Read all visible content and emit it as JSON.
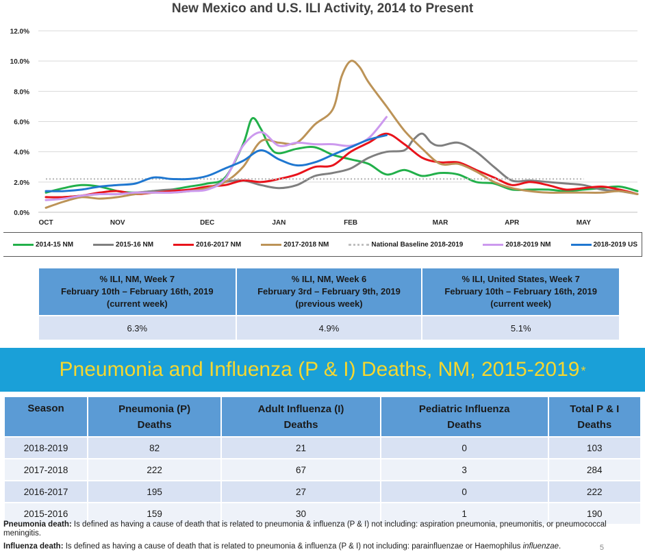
{
  "chart_data": {
    "type": "line",
    "title": "New Mexico and U.S. ILI Activity, 2014 to Present",
    "xlabel": "",
    "ylabel": "",
    "x_range": [
      0,
      33
    ],
    "ylim": [
      0,
      12
    ],
    "y_ticks": [
      "0.0%",
      "2.0%",
      "4.0%",
      "6.0%",
      "8.0%",
      "10.0%",
      "12.0%"
    ],
    "month_ticks": [
      {
        "label": "OCT",
        "x": 0
      },
      {
        "label": "NOV",
        "x": 4
      },
      {
        "label": "DEC",
        "x": 9
      },
      {
        "label": "JAN",
        "x": 13
      },
      {
        "label": "FEB",
        "x": 17
      },
      {
        "label": "MAR",
        "x": 22
      },
      {
        "label": "APR",
        "x": 26
      },
      {
        "label": "MAY",
        "x": 30
      }
    ],
    "grid": true,
    "legend_position": "bottom",
    "series": [
      {
        "name": "2014-15 NM",
        "color": "#22b04a",
        "dashed": false,
        "x": [
          0,
          1,
          2,
          3,
          4,
          5,
          6,
          7,
          8,
          9,
          10,
          11,
          11.5,
          12,
          12.5,
          13,
          14,
          15,
          16,
          17,
          18,
          19,
          20,
          21,
          22,
          23,
          24,
          25,
          26,
          27,
          28,
          29,
          30,
          31,
          32,
          33
        ],
        "y": [
          1.3,
          1.6,
          1.8,
          1.7,
          1.4,
          1.3,
          1.4,
          1.5,
          1.7,
          1.9,
          2.3,
          4.5,
          6.2,
          5.5,
          4.3,
          3.9,
          4.2,
          4.3,
          3.8,
          3.5,
          3.2,
          2.5,
          2.8,
          2.4,
          2.6,
          2.5,
          2.0,
          1.9,
          1.5,
          1.5,
          1.5,
          1.4,
          1.5,
          1.6,
          1.7,
          1.4
        ]
      },
      {
        "name": "2015-16 NM",
        "color": "#7f7f7f",
        "dashed": false,
        "x": [
          0,
          1,
          2,
          3,
          4,
          5,
          6,
          7,
          8,
          9,
          10,
          11,
          12,
          13,
          14,
          15,
          16,
          17,
          18,
          19,
          20,
          20.5,
          21,
          21.5,
          22,
          23,
          24,
          25,
          26,
          27,
          28,
          29,
          30,
          31,
          32,
          33
        ],
        "y": [
          1.0,
          1.0,
          1.1,
          1.2,
          1.2,
          1.3,
          1.4,
          1.5,
          1.4,
          1.6,
          2.0,
          2.1,
          1.8,
          1.6,
          1.8,
          2.4,
          2.6,
          2.9,
          3.6,
          4.0,
          4.1,
          4.8,
          5.2,
          4.6,
          4.4,
          4.6,
          4.0,
          3.0,
          2.1,
          2.1,
          2.0,
          1.9,
          1.8,
          1.5,
          1.4,
          1.2
        ]
      },
      {
        "name": "2016-2017 NM",
        "color": "#e8131b",
        "dashed": false,
        "x": [
          0,
          1,
          2,
          3,
          4,
          5,
          6,
          7,
          8,
          9,
          10,
          11,
          12,
          13,
          14,
          15,
          16,
          17,
          18,
          19,
          20,
          21,
          22,
          23,
          24,
          25,
          26,
          27,
          28,
          29,
          30,
          31,
          32,
          33
        ],
        "y": [
          1.0,
          1.0,
          1.1,
          1.3,
          1.4,
          1.2,
          1.3,
          1.4,
          1.5,
          1.7,
          1.8,
          2.1,
          2.0,
          2.2,
          2.5,
          3.0,
          3.1,
          4.0,
          4.6,
          5.2,
          4.5,
          3.6,
          3.3,
          3.3,
          2.8,
          2.3,
          1.8,
          2.0,
          1.8,
          1.5,
          1.6,
          1.7,
          1.5,
          1.2
        ]
      },
      {
        "name": "2017-2018 NM",
        "color": "#bc9357",
        "dashed": false,
        "x": [
          0,
          1,
          2,
          3,
          4,
          5,
          6,
          7,
          8,
          9,
          10,
          11,
          12,
          13,
          14,
          15,
          16,
          16.5,
          17,
          17.5,
          18,
          19,
          20,
          21,
          22,
          23,
          24,
          25,
          26,
          27,
          28,
          29,
          30,
          31,
          32,
          33
        ],
        "y": [
          0.3,
          0.7,
          1.0,
          0.9,
          1.0,
          1.2,
          1.3,
          1.3,
          1.4,
          1.6,
          2.0,
          3.0,
          4.7,
          4.6,
          4.6,
          5.8,
          6.8,
          9.0,
          10.0,
          9.6,
          8.6,
          7.0,
          5.4,
          4.2,
          3.2,
          3.2,
          2.7,
          2.0,
          1.6,
          1.4,
          1.3,
          1.3,
          1.3,
          1.3,
          1.4,
          1.2
        ]
      },
      {
        "name": "National Baseline 2018-2019",
        "color": "#bfbfbf",
        "dashed": true,
        "x": [
          0,
          30
        ],
        "y": [
          2.2,
          2.2
        ]
      },
      {
        "name": "2018-2019 NM",
        "color": "#cc99ee",
        "dashed": false,
        "x": [
          0,
          1,
          2,
          3,
          4,
          5,
          6,
          7,
          8,
          9,
          10,
          11,
          12,
          13,
          14,
          15,
          16,
          17,
          18,
          19
        ],
        "y": [
          0.8,
          0.9,
          1.1,
          1.2,
          1.2,
          1.3,
          1.3,
          1.3,
          1.4,
          1.5,
          2.2,
          4.4,
          5.3,
          4.4,
          4.6,
          4.5,
          4.5,
          4.4,
          4.9,
          6.3
        ]
      },
      {
        "name": "2018-2019 US",
        "color": "#1f77d0",
        "dashed": false,
        "x": [
          0,
          1,
          2,
          3,
          4,
          5,
          6,
          7,
          8,
          9,
          10,
          11,
          12,
          13,
          14,
          15,
          16,
          17,
          18,
          19
        ],
        "y": [
          1.4,
          1.4,
          1.5,
          1.7,
          1.8,
          1.9,
          2.3,
          2.2,
          2.2,
          2.4,
          2.9,
          3.4,
          4.1,
          3.5,
          3.1,
          3.3,
          3.8,
          4.3,
          4.8,
          5.1
        ]
      }
    ]
  },
  "ili_table": {
    "headers": [
      {
        "line1": "% ILI, NM, Week 7",
        "line2": "February 10th – February 16th, 2019",
        "line3": "(current week)"
      },
      {
        "line1": "% ILI, NM, Week 6",
        "line2": "February 3rd – February 9th, 2019",
        "line3": "(previous week)"
      },
      {
        "line1": "% ILI, United States, Week 7",
        "line2": "February 10th – February 16th, 2019",
        "line3": "(current week)"
      }
    ],
    "values": [
      "6.3%",
      "4.9%",
      "5.1%"
    ]
  },
  "pi_section": {
    "title": "Pneumonia and Influenza (P & I) Deaths, NM, 2015-2019",
    "star": "*"
  },
  "pi_table": {
    "headers": [
      {
        "line1": "Season",
        "line2": ""
      },
      {
        "line1": "Pneumonia (P)",
        "line2": "Deaths"
      },
      {
        "line1": "Adult Influenza (I)",
        "line2": "Deaths"
      },
      {
        "line1": "Pediatric Influenza",
        "line2": "Deaths"
      },
      {
        "line1": "Total P & I",
        "line2": "Deaths"
      }
    ],
    "rows": [
      [
        "2018-2019",
        "82",
        "21",
        "0",
        "103"
      ],
      [
        "2017-2018",
        "222",
        "67",
        "3",
        "284"
      ],
      [
        "2016-2017",
        "195",
        "27",
        "0",
        "222"
      ],
      [
        "2015-2016",
        "159",
        "30",
        "1",
        "190"
      ]
    ]
  },
  "definitions": {
    "pneumonia_label": "Pneumonia death:",
    "pneumonia_text": " Is defined as having a cause of death that is related to pneumonia & influenza (P & I) not including: aspiration pneumonia, pneumonitis,  or pneumococcal meningitis.",
    "influenza_label": "Influenza death:",
    "influenza_text": " Is defined as having a cause of death that is related to pneumonia & influenza (P & I) not including: parainfluenzae or Haemophilus ",
    "influenza_italic": "influenzae",
    "influenza_end": "."
  },
  "page_number": "5"
}
